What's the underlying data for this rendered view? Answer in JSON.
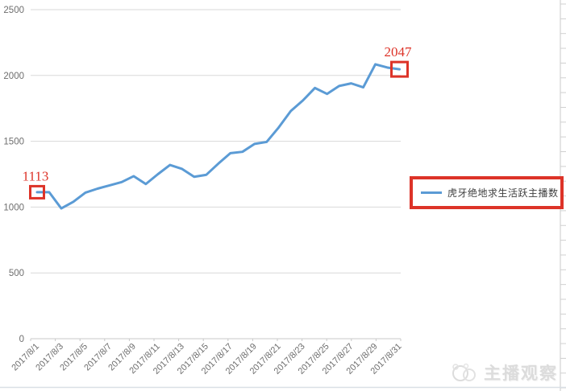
{
  "chart_data": {
    "type": "line",
    "title": "",
    "xlabel": "",
    "ylabel": "",
    "x": [
      "2017/8/1",
      "2017/8/2",
      "2017/8/3",
      "2017/8/4",
      "2017/8/5",
      "2017/8/6",
      "2017/8/7",
      "2017/8/8",
      "2017/8/9",
      "2017/8/10",
      "2017/8/11",
      "2017/8/12",
      "2017/8/13",
      "2017/8/14",
      "2017/8/15",
      "2017/8/16",
      "2017/8/17",
      "2017/8/18",
      "2017/8/19",
      "2017/8/20",
      "2017/8/21",
      "2017/8/22",
      "2017/8/23",
      "2017/8/24",
      "2017/8/25",
      "2017/8/26",
      "2017/8/27",
      "2017/8/28",
      "2017/8/29",
      "2017/8/30",
      "2017/8/31"
    ],
    "x_label_every": 2,
    "series": [
      {
        "name": "虎牙绝地求生活跃主播数",
        "color": "#5B9BD5",
        "values": [
          1113,
          1113,
          990,
          1040,
          1110,
          1140,
          1165,
          1190,
          1235,
          1175,
          1250,
          1320,
          1290,
          1230,
          1245,
          1330,
          1410,
          1420,
          1480,
          1495,
          1605,
          1730,
          1810,
          1905,
          1860,
          1920,
          1940,
          1910,
          2085,
          2060,
          2047
        ]
      }
    ],
    "ylim": [
      0,
      2500
    ],
    "y_ticks": [
      0,
      500,
      1000,
      1500,
      2000,
      2500
    ],
    "grid": "horizontal",
    "legend_position": "right",
    "annotations": [
      {
        "text": "1113",
        "point_index": 0
      },
      {
        "text": "2047",
        "point_index": 30
      }
    ]
  },
  "legend": {
    "label": "虎牙绝地求生活跃主播数"
  },
  "watermark": {
    "text": "主播观察",
    "logo": "panda-logo-icon"
  },
  "colors": {
    "line": "#5B9BD5",
    "annotation_red": "#DD3328",
    "gridline": "#D9D9D9",
    "axis": "#C8C8C8",
    "tick_label": "#6E6E6E",
    "legend_text": "#3F3F3F",
    "watermark_gray": "#DCDCDC"
  }
}
